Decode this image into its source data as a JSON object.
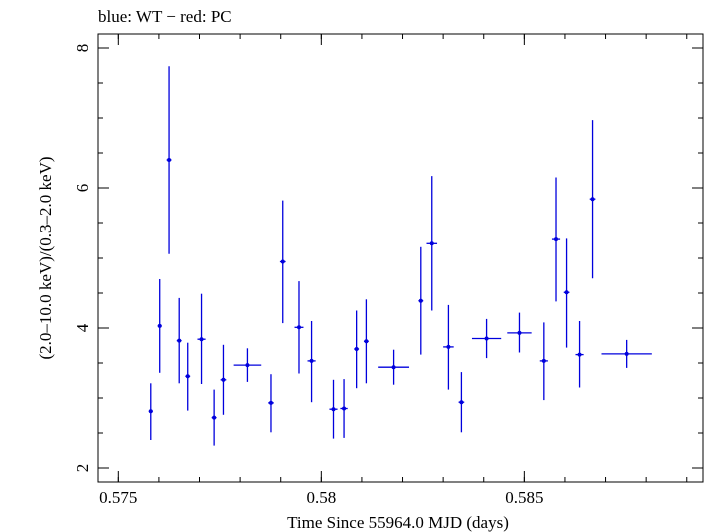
{
  "chart_data": {
    "type": "scatter",
    "title": "blue: WT − red: PC",
    "xlabel": "Time Since 55964.0 MJD (days)",
    "ylabel": "(2.0–10.0 keV)/(0.3–2.0 keV)",
    "xlim": [
      0.5745,
      0.5894
    ],
    "ylim": [
      1.8,
      8.2
    ],
    "xticks": [
      {
        "value": 0.575,
        "label": "0.575"
      },
      {
        "value": 0.58,
        "label": "0.58"
      },
      {
        "value": 0.585,
        "label": "0.585"
      }
    ],
    "yticks": [
      {
        "value": 2,
        "label": "2"
      },
      {
        "value": 4,
        "label": "4"
      },
      {
        "value": 6,
        "label": "6"
      },
      {
        "value": 8,
        "label": "8"
      }
    ],
    "xminor_step": 0.001,
    "yminor_step": 0.5,
    "grid": false,
    "series": [
      {
        "color": "#0000dd",
        "points": [
          {
            "x": 0.5758,
            "y": 2.81,
            "xerr": 5e-05,
            "ylo": 2.4,
            "yhi": 3.21
          },
          {
            "x": 0.57602,
            "y": 4.03,
            "xerr": 5e-05,
            "ylo": 3.36,
            "yhi": 4.7
          },
          {
            "x": 0.57625,
            "y": 6.4,
            "xerr": 6e-05,
            "ylo": 5.06,
            "yhi": 7.74
          },
          {
            "x": 0.5765,
            "y": 3.82,
            "xerr": 6e-05,
            "ylo": 3.21,
            "yhi": 4.43
          },
          {
            "x": 0.57671,
            "y": 3.31,
            "xerr": 6e-05,
            "ylo": 2.82,
            "yhi": 3.79
          },
          {
            "x": 0.57705,
            "y": 3.84,
            "xerr": 0.0001,
            "ylo": 3.2,
            "yhi": 4.49
          },
          {
            "x": 0.57736,
            "y": 2.72,
            "xerr": 6e-05,
            "ylo": 2.32,
            "yhi": 3.12
          },
          {
            "x": 0.57759,
            "y": 3.26,
            "xerr": 7e-05,
            "ylo": 2.76,
            "yhi": 3.76
          },
          {
            "x": 0.57818,
            "y": 3.47,
            "xerr": 0.00034,
            "ylo": 3.23,
            "yhi": 3.71
          },
          {
            "x": 0.57876,
            "y": 2.93,
            "xerr": 7e-05,
            "ylo": 2.51,
            "yhi": 3.34
          },
          {
            "x": 0.57905,
            "y": 4.95,
            "xerr": 7e-05,
            "ylo": 4.07,
            "yhi": 5.82
          },
          {
            "x": 0.57945,
            "y": 4.01,
            "xerr": 0.00011,
            "ylo": 3.35,
            "yhi": 4.67
          },
          {
            "x": 0.57976,
            "y": 3.53,
            "xerr": 0.0001,
            "ylo": 2.94,
            "yhi": 4.1
          },
          {
            "x": 0.5803,
            "y": 2.84,
            "xerr": 0.0001,
            "ylo": 2.42,
            "yhi": 3.26
          },
          {
            "x": 0.58056,
            "y": 2.85,
            "xerr": 9e-05,
            "ylo": 2.43,
            "yhi": 3.27
          },
          {
            "x": 0.58087,
            "y": 3.7,
            "xerr": 6e-05,
            "ylo": 3.14,
            "yhi": 4.25
          },
          {
            "x": 0.58111,
            "y": 3.81,
            "xerr": 6e-05,
            "ylo": 3.21,
            "yhi": 4.41
          },
          {
            "x": 0.58178,
            "y": 3.44,
            "xerr": 0.00038,
            "ylo": 3.19,
            "yhi": 3.69
          },
          {
            "x": 0.58245,
            "y": 4.39,
            "xerr": 6e-05,
            "ylo": 3.62,
            "yhi": 5.16
          },
          {
            "x": 0.58272,
            "y": 5.21,
            "xerr": 0.00013,
            "ylo": 4.25,
            "yhi": 6.17
          },
          {
            "x": 0.58313,
            "y": 3.73,
            "xerr": 0.00013,
            "ylo": 3.12,
            "yhi": 4.33
          },
          {
            "x": 0.58345,
            "y": 2.94,
            "xerr": 7e-05,
            "ylo": 2.51,
            "yhi": 3.37
          },
          {
            "x": 0.58407,
            "y": 3.85,
            "xerr": 0.00036,
            "ylo": 3.57,
            "yhi": 4.13
          },
          {
            "x": 0.58488,
            "y": 3.93,
            "xerr": 0.0003,
            "ylo": 3.65,
            "yhi": 4.22
          },
          {
            "x": 0.58548,
            "y": 3.53,
            "xerr": 0.0001,
            "ylo": 2.97,
            "yhi": 4.08
          },
          {
            "x": 0.58578,
            "y": 5.27,
            "xerr": 0.0001,
            "ylo": 4.38,
            "yhi": 6.15
          },
          {
            "x": 0.58604,
            "y": 4.51,
            "xerr": 7e-05,
            "ylo": 3.72,
            "yhi": 5.28
          },
          {
            "x": 0.58636,
            "y": 3.62,
            "xerr": 0.0001,
            "ylo": 3.15,
            "yhi": 4.1
          },
          {
            "x": 0.58668,
            "y": 5.84,
            "xerr": 7e-05,
            "ylo": 4.71,
            "yhi": 6.97
          },
          {
            "x": 0.58752,
            "y": 3.63,
            "xerr": 0.00062,
            "ylo": 3.43,
            "yhi": 3.83
          }
        ]
      }
    ]
  }
}
